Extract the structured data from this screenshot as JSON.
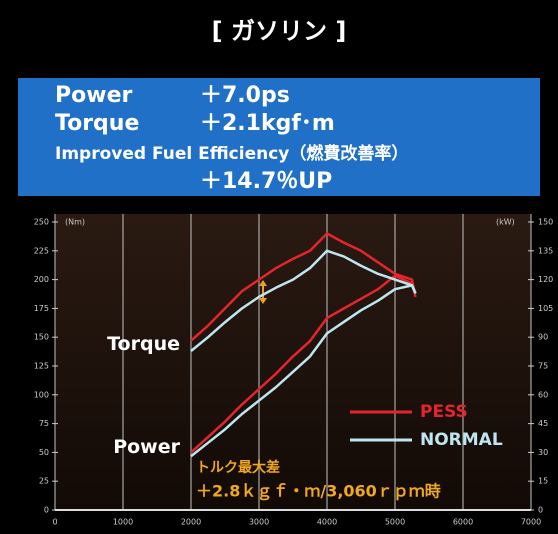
{
  "header": {
    "title": "[ ガソリン ]",
    "lines": [
      [
        "Power",
        "＋7.0ps"
      ],
      [
        "Torque",
        "＋2.1kgf･m"
      ],
      [
        "Improved Fuel Efficiency（燃費改善率）"
      ],
      [
        "＋14.7％UP"
      ]
    ]
  },
  "chart_data": {
    "type": "line",
    "ylabel": "(Nm)",
    "y2label": "(kW)",
    "x": [
      2000,
      2250,
      2500,
      2750,
      3000,
      3250,
      3500,
      3750,
      4000,
      4250,
      4500,
      4750,
      5000,
      5250,
      5300
    ],
    "xlim": [
      0,
      7000
    ],
    "xticks": [
      0,
      1000,
      2000,
      3000,
      4000,
      5000,
      6000,
      7000
    ],
    "ylim": [
      0,
      250
    ],
    "yticks": [
      0,
      25,
      50,
      75,
      100,
      125,
      150,
      175,
      200,
      225,
      250
    ],
    "y2lim": [
      0,
      150
    ],
    "y2ticks": [
      0,
      15,
      30,
      45,
      60,
      75,
      90,
      105,
      120,
      135,
      150
    ],
    "curve_labels": {
      "torque": "Torque",
      "power": "Power"
    },
    "series": [
      {
        "name": "PESS",
        "color": "#e3262c",
        "torque": [
          147,
          160,
          175,
          190,
          200,
          210,
          218,
          225,
          240,
          232,
          225,
          215,
          205,
          200,
          185
        ],
        "power": [
          30,
          38,
          46,
          55,
          63,
          71,
          80,
          88,
          100,
          105,
          110,
          115,
          122,
          118,
          113
        ]
      },
      {
        "name": "NORMAL",
        "color": "#bfe6f0",
        "torque": [
          138,
          150,
          163,
          175,
          185,
          193,
          200,
          210,
          225,
          220,
          212,
          205,
          200,
          195,
          188
        ],
        "power": [
          28,
          35,
          42,
          50,
          57,
          64,
          72,
          80,
          92,
          98,
          104,
          109,
          115,
          117,
          113
        ]
      }
    ],
    "annotation": [
      "トルク最大差",
      "＋2.8ｋｇｆ・ｍ/3,060ｒｐｍ時"
    ]
  }
}
